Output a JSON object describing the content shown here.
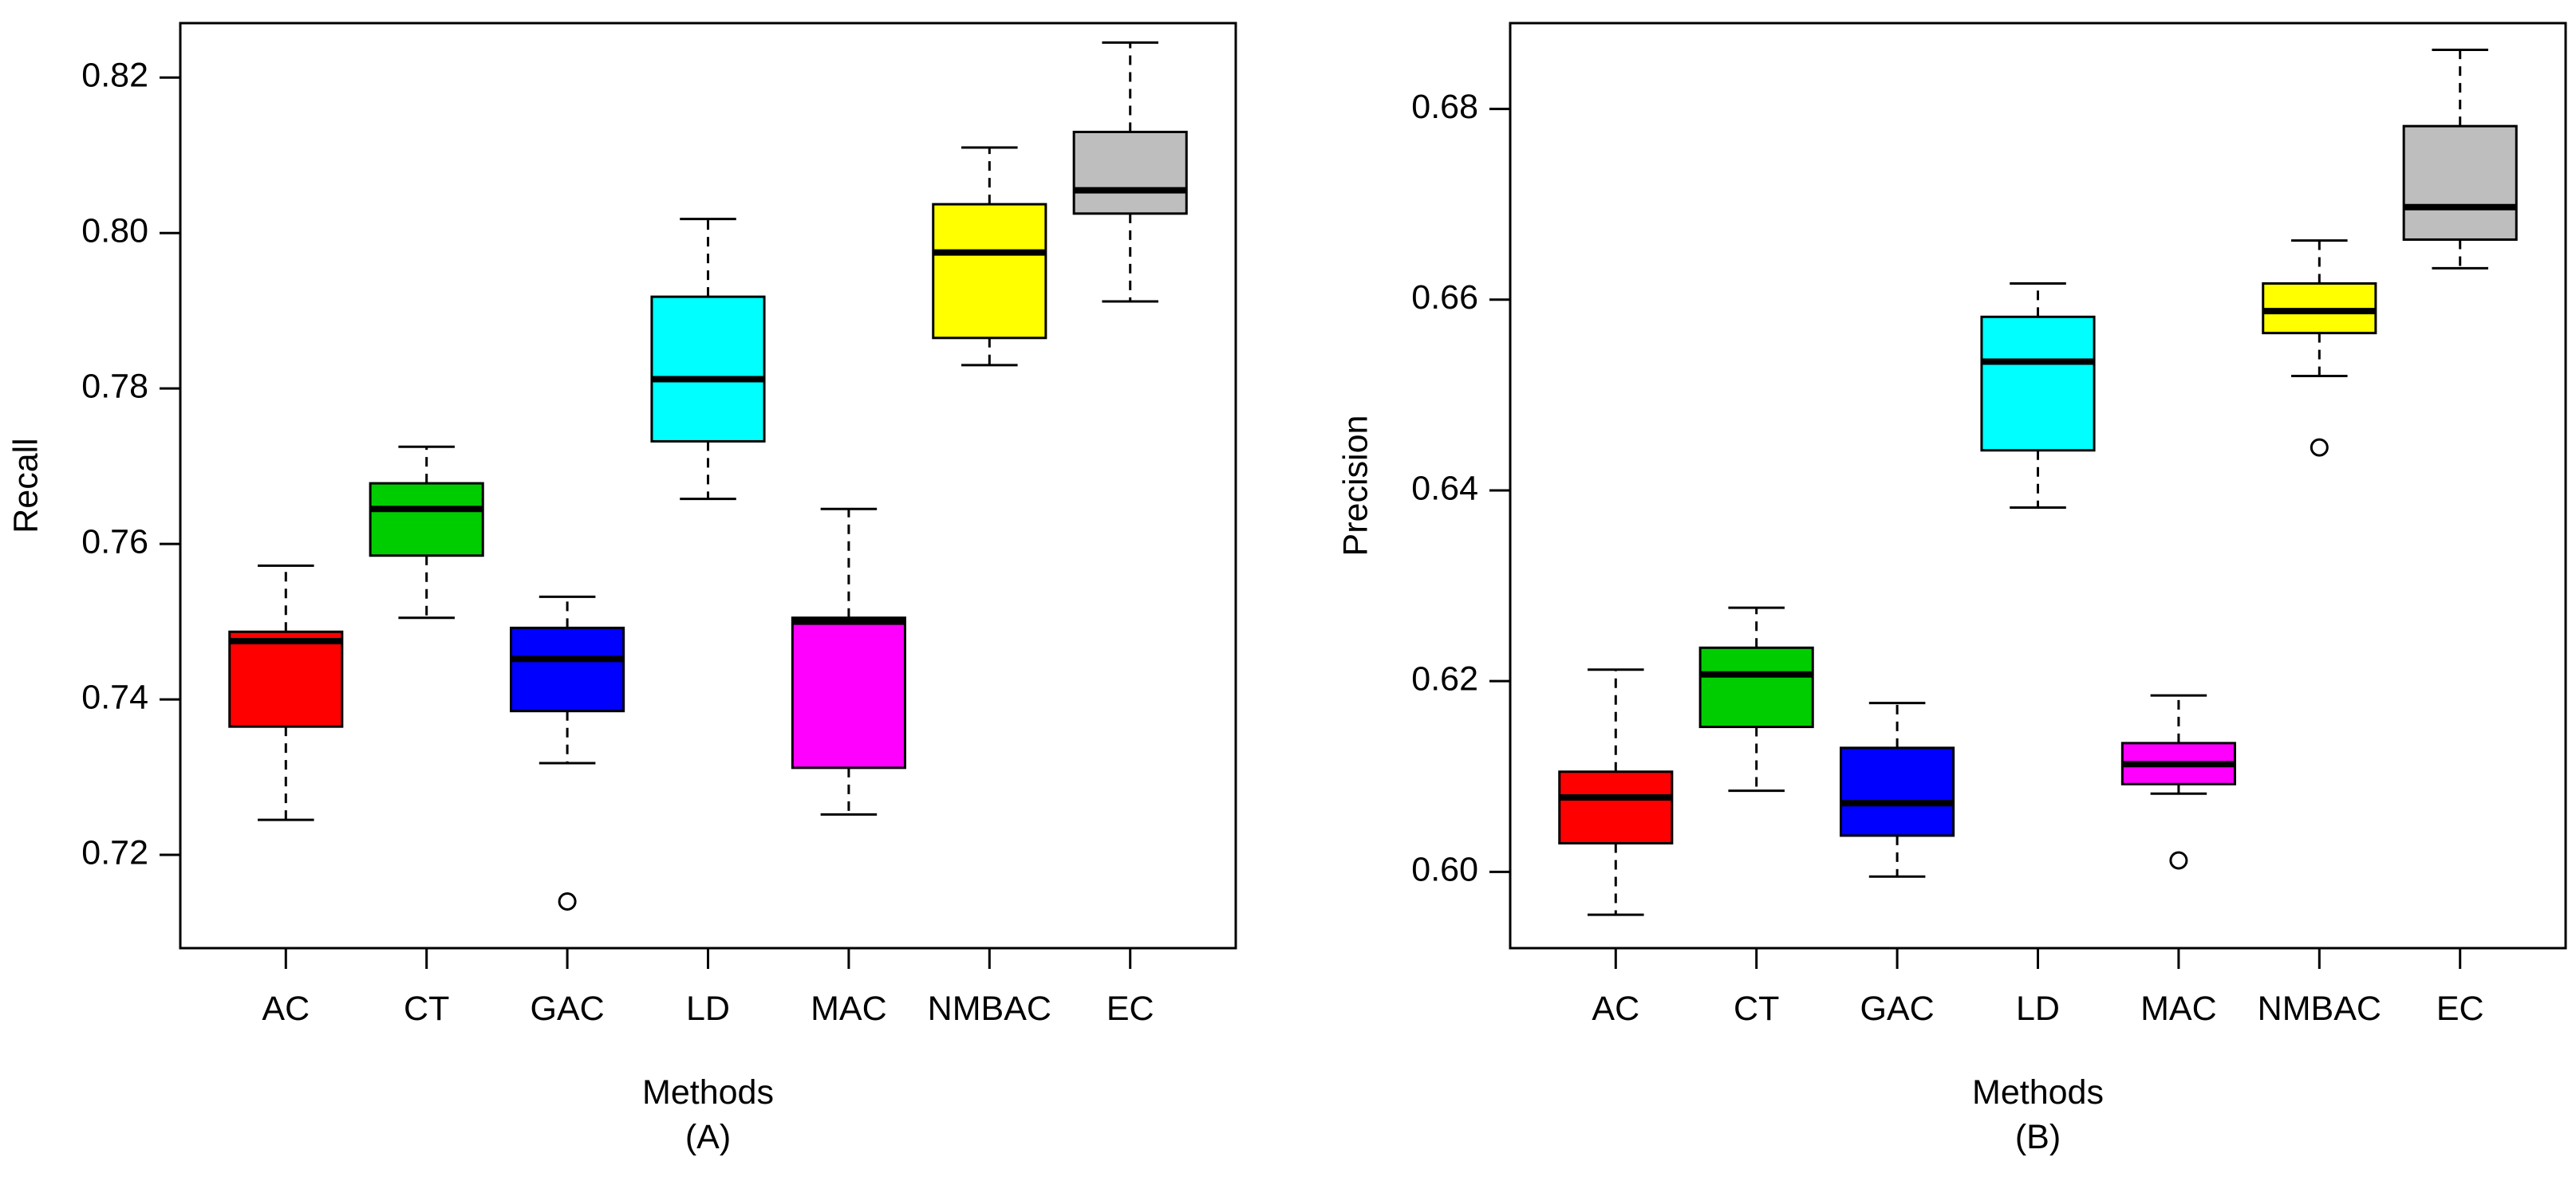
{
  "chart_data": [
    {
      "type": "boxplot",
      "panel_label": "(A)",
      "xlabel": "Methods",
      "ylabel": "Recall",
      "ylim": [
        0.708,
        0.827
      ],
      "yticks": [
        "0.72",
        "0.74",
        "0.76",
        "0.78",
        "0.80",
        "0.82"
      ],
      "ytick_values": [
        0.72,
        0.74,
        0.76,
        0.78,
        0.8,
        0.82
      ],
      "grid": false,
      "categories": [
        "AC",
        "CT",
        "GAC",
        "LD",
        "MAC",
        "NMBAC",
        "EC"
      ],
      "boxes": [
        {
          "label": "AC",
          "whisker_low": 0.7245,
          "q1": 0.7365,
          "median": 0.7475,
          "q3": 0.7487,
          "whisker_high": 0.7572,
          "outliers": [],
          "color": "#ff0000"
        },
        {
          "label": "CT",
          "whisker_low": 0.7505,
          "q1": 0.7585,
          "median": 0.7645,
          "q3": 0.7678,
          "whisker_high": 0.7725,
          "outliers": [],
          "color": "#00cd00"
        },
        {
          "label": "GAC",
          "whisker_low": 0.7318,
          "q1": 0.7385,
          "median": 0.7452,
          "q3": 0.7492,
          "whisker_high": 0.7532,
          "outliers": [
            0.714
          ],
          "color": "#0000ff"
        },
        {
          "label": "LD",
          "whisker_low": 0.7658,
          "q1": 0.7732,
          "median": 0.7812,
          "q3": 0.7918,
          "whisker_high": 0.8018,
          "outliers": [],
          "color": "#00ffff"
        },
        {
          "label": "MAC",
          "whisker_low": 0.7252,
          "q1": 0.7312,
          "median": 0.75,
          "q3": 0.7505,
          "whisker_high": 0.7645,
          "outliers": [],
          "color": "#ff00ff"
        },
        {
          "label": "NMBAC",
          "whisker_low": 0.783,
          "q1": 0.7865,
          "median": 0.7975,
          "q3": 0.8037,
          "whisker_high": 0.811,
          "outliers": [],
          "color": "#ffff00"
        },
        {
          "label": "EC",
          "whisker_low": 0.7912,
          "q1": 0.8025,
          "median": 0.8055,
          "q3": 0.813,
          "whisker_high": 0.8245,
          "outliers": [],
          "color": "#bebebe"
        }
      ]
    },
    {
      "type": "boxplot",
      "panel_label": "(B)",
      "xlabel": "Methods",
      "ylabel": "Precision",
      "ylim": [
        0.592,
        0.689
      ],
      "yticks": [
        "0.60",
        "0.62",
        "0.64",
        "0.66",
        "0.68"
      ],
      "ytick_values": [
        0.6,
        0.62,
        0.64,
        0.66,
        0.68
      ],
      "grid": false,
      "categories": [
        "AC",
        "CT",
        "GAC",
        "LD",
        "MAC",
        "NMBAC",
        "EC"
      ],
      "boxes": [
        {
          "label": "AC",
          "whisker_low": 0.5955,
          "q1": 0.603,
          "median": 0.6078,
          "q3": 0.6105,
          "whisker_high": 0.6212,
          "outliers": [],
          "color": "#ff0000"
        },
        {
          "label": "CT",
          "whisker_low": 0.6085,
          "q1": 0.6152,
          "median": 0.6207,
          "q3": 0.6235,
          "whisker_high": 0.6277,
          "outliers": [],
          "color": "#00cd00"
        },
        {
          "label": "GAC",
          "whisker_low": 0.5995,
          "q1": 0.6038,
          "median": 0.6072,
          "q3": 0.613,
          "whisker_high": 0.6177,
          "outliers": [],
          "color": "#0000ff"
        },
        {
          "label": "LD",
          "whisker_low": 0.6382,
          "q1": 0.6442,
          "median": 0.6535,
          "q3": 0.6582,
          "whisker_high": 0.6617,
          "outliers": [],
          "color": "#00ffff"
        },
        {
          "label": "MAC",
          "whisker_low": 0.6082,
          "q1": 0.6092,
          "median": 0.6113,
          "q3": 0.6135,
          "whisker_high": 0.6185,
          "outliers": [
            0.6012
          ],
          "color": "#ff00ff"
        },
        {
          "label": "NMBAC",
          "whisker_low": 0.652,
          "q1": 0.6565,
          "median": 0.6588,
          "q3": 0.6617,
          "whisker_high": 0.6662,
          "outliers": [
            0.6445
          ],
          "color": "#ffff00"
        },
        {
          "label": "EC",
          "whisker_low": 0.6633,
          "q1": 0.6663,
          "median": 0.6697,
          "q3": 0.6782,
          "whisker_high": 0.6862,
          "outliers": [],
          "color": "#bebebe"
        }
      ]
    }
  ]
}
